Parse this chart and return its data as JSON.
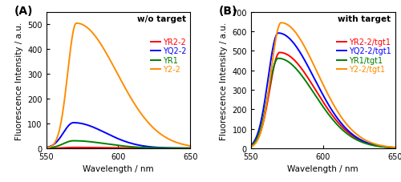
{
  "xlim": [
    550,
    650
  ],
  "xlabel": "Wavelength / nm",
  "ylabel": "Fluorescence Intensity / a.u.",
  "xticks": [
    550,
    600,
    650
  ],
  "panel_A": {
    "label": "(A)",
    "title": "w/o target",
    "ylim": [
      0,
      550
    ],
    "yticks": [
      0,
      100,
      200,
      300,
      400,
      500
    ],
    "curves": [
      {
        "name": "YR2-2",
        "color": "#ff0000",
        "peak": 3,
        "peak_x": 569,
        "sigma_l": 6,
        "sigma_r": 22
      },
      {
        "name": "YQ2-2",
        "color": "#0000ff",
        "peak": 103,
        "peak_x": 569,
        "sigma_l": 7,
        "sigma_r": 22
      },
      {
        "name": "YR1",
        "color": "#008000",
        "peak": 30,
        "peak_x": 569,
        "sigma_l": 7,
        "sigma_r": 22
      },
      {
        "name": "Y2-2",
        "color": "#ff8c00",
        "peak": 505,
        "peak_x": 571,
        "sigma_l": 6,
        "sigma_r": 28
      }
    ]
  },
  "panel_B": {
    "label": "(B)",
    "title": "with target",
    "ylim": [
      0,
      700
    ],
    "yticks": [
      0,
      100,
      200,
      300,
      400,
      500,
      600,
      700
    ],
    "curves": [
      {
        "name": "YR2-2/tgt1",
        "color": "#ff0000",
        "peak": 492,
        "peak_x": 570,
        "sigma_l": 7,
        "sigma_r": 25
      },
      {
        "name": "YQ2-2/tgt1",
        "color": "#0000ff",
        "peak": 592,
        "peak_x": 569,
        "sigma_l": 7,
        "sigma_r": 25
      },
      {
        "name": "YR1/tgt1",
        "color": "#008000",
        "peak": 462,
        "peak_x": 569,
        "sigma_l": 7,
        "sigma_r": 25
      },
      {
        "name": "Y2-2/tgt1",
        "color": "#ff8c00",
        "peak": 645,
        "peak_x": 571,
        "sigma_l": 7,
        "sigma_r": 25
      }
    ]
  },
  "legend_fontsize": 7.0,
  "axis_fontsize": 7.5,
  "tick_fontsize": 7,
  "label_fontsize": 10,
  "linewidth": 1.4
}
